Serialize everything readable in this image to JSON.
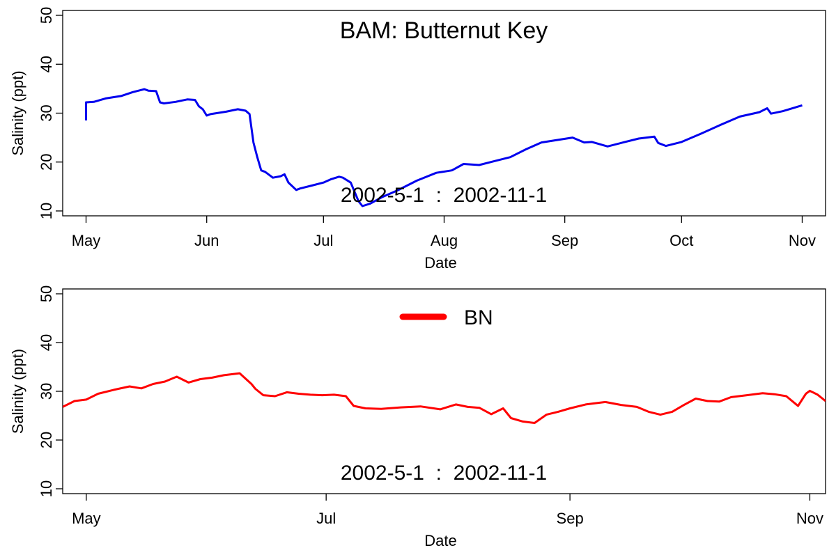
{
  "chart_data": [
    {
      "type": "line",
      "title": "BAM: Butternut Key",
      "annotation": "2002-5-1  :  2002-11-1",
      "xlabel": "Date",
      "ylabel": "Salinity (ppt)",
      "xlim": [
        "2002-04-25",
        "2002-11-07"
      ],
      "ylim": [
        9,
        51
      ],
      "yticks": [
        10,
        20,
        30,
        40,
        50
      ],
      "xticks": [
        {
          "date": "2002-05-01",
          "label": "May"
        },
        {
          "date": "2002-06-01",
          "label": "Jun"
        },
        {
          "date": "2002-07-01",
          "label": "Jul"
        },
        {
          "date": "2002-08-01",
          "label": "Aug"
        },
        {
          "date": "2002-09-01",
          "label": "Sep"
        },
        {
          "date": "2002-10-01",
          "label": "Oct"
        },
        {
          "date": "2002-11-01",
          "label": "Nov"
        }
      ],
      "series": [
        {
          "color": "#0000ee",
          "x": [
            "2002-05-01",
            "2002-05-01",
            "2002-05-01",
            "2002-05-03",
            "2002-05-06",
            "2002-05-10",
            "2002-05-13",
            "2002-05-16",
            "2002-05-17",
            "2002-05-19",
            "2002-05-20",
            "2002-05-21",
            "2002-05-24",
            "2002-05-27",
            "2002-05-29",
            "2002-05-30",
            "2002-05-31",
            "2002-06-01",
            "2002-06-02",
            "2002-06-06",
            "2002-06-09",
            "2002-06-11",
            "2002-06-12",
            "2002-06-13",
            "2002-06-14",
            "2002-06-15",
            "2002-06-16",
            "2002-06-18",
            "2002-06-20",
            "2002-06-21",
            "2002-06-22",
            "2002-06-24",
            "2002-06-25",
            "2002-06-28",
            "2002-07-01",
            "2002-07-03",
            "2002-07-05",
            "2002-07-06",
            "2002-07-08",
            "2002-07-10",
            "2002-07-11",
            "2002-07-13",
            "2002-07-16",
            "2002-07-20",
            "2002-07-25",
            "2002-07-30",
            "2002-08-03",
            "2002-08-06",
            "2002-08-10",
            "2002-08-14",
            "2002-08-18",
            "2002-08-22",
            "2002-08-26",
            "2002-08-30",
            "2002-09-03",
            "2002-09-06",
            "2002-09-08",
            "2002-09-12",
            "2002-09-16",
            "2002-09-20",
            "2002-09-24",
            "2002-09-25",
            "2002-09-27",
            "2002-10-01",
            "2002-10-06",
            "2002-10-11",
            "2002-10-16",
            "2002-10-21",
            "2002-10-23",
            "2002-10-24",
            "2002-10-27",
            "2002-11-01"
          ],
          "y": [
            28.5,
            32.0,
            32.2,
            32.3,
            33.0,
            33.5,
            34.3,
            34.9,
            34.6,
            34.5,
            32.2,
            32.0,
            32.3,
            32.8,
            32.7,
            31.4,
            30.8,
            29.5,
            29.8,
            30.3,
            30.8,
            30.5,
            29.8,
            24.0,
            21.0,
            18.3,
            18.0,
            16.8,
            17.1,
            17.5,
            15.8,
            14.3,
            14.6,
            15.2,
            15.8,
            16.5,
            17.0,
            16.8,
            15.8,
            12.0,
            11.0,
            11.5,
            12.8,
            14.2,
            16.2,
            17.8,
            18.3,
            19.6,
            19.4,
            20.2,
            21.0,
            22.6,
            24.0,
            24.5,
            25.0,
            24.0,
            24.1,
            23.2,
            24.0,
            24.8,
            25.2,
            23.9,
            23.3,
            24.1,
            25.8,
            27.6,
            29.3,
            30.2,
            31.0,
            29.9,
            30.4,
            31.6
          ]
        }
      ]
    },
    {
      "type": "line",
      "annotation": "2002-5-1  :  2002-11-1",
      "xlabel": "Date",
      "ylabel": "Salinity (ppt)",
      "xlim": [
        "2002-04-25",
        "2002-11-05"
      ],
      "ylim": [
        9,
        51
      ],
      "yticks": [
        10,
        20,
        30,
        40,
        50
      ],
      "xticks": [
        {
          "date": "2002-05-01",
          "label": "May"
        },
        {
          "date": "2002-07-01",
          "label": "Jul"
        },
        {
          "date": "2002-09-01",
          "label": "Sep"
        },
        {
          "date": "2002-11-01",
          "label": "Nov"
        }
      ],
      "legend": {
        "position": "top-center",
        "entries": [
          {
            "label": "BN",
            "color": "#ff0000"
          }
        ]
      },
      "series": [
        {
          "name": "BN",
          "color": "#ff0000",
          "x": [
            "2002-04-25",
            "2002-04-28",
            "2002-05-01",
            "2002-05-04",
            "2002-05-08",
            "2002-05-12",
            "2002-05-15",
            "2002-05-18",
            "2002-05-21",
            "2002-05-24",
            "2002-05-27",
            "2002-05-30",
            "2002-06-02",
            "2002-06-05",
            "2002-06-09",
            "2002-06-12",
            "2002-06-13",
            "2002-06-15",
            "2002-06-18",
            "2002-06-21",
            "2002-06-24",
            "2002-06-27",
            "2002-06-30",
            "2002-07-03",
            "2002-07-06",
            "2002-07-08",
            "2002-07-11",
            "2002-07-15",
            "2002-07-20",
            "2002-07-25",
            "2002-07-30",
            "2002-08-03",
            "2002-08-06",
            "2002-08-09",
            "2002-08-12",
            "2002-08-15",
            "2002-08-17",
            "2002-08-20",
            "2002-08-23",
            "2002-08-26",
            "2002-08-29",
            "2002-09-01",
            "2002-09-05",
            "2002-09-10",
            "2002-09-14",
            "2002-09-18",
            "2002-09-21",
            "2002-09-24",
            "2002-09-27",
            "2002-09-30",
            "2002-10-03",
            "2002-10-06",
            "2002-10-09",
            "2002-10-12",
            "2002-10-16",
            "2002-10-20",
            "2002-10-23",
            "2002-10-26",
            "2002-10-29",
            "2002-10-31",
            "2002-11-01",
            "2002-11-03",
            "2002-11-05"
          ],
          "y": [
            26.8,
            28.0,
            28.3,
            29.5,
            30.3,
            31.0,
            30.6,
            31.5,
            32.0,
            33.0,
            31.8,
            32.5,
            32.8,
            33.3,
            33.7,
            31.5,
            30.5,
            29.2,
            29.0,
            29.8,
            29.5,
            29.3,
            29.2,
            29.3,
            29.0,
            27.0,
            26.5,
            26.4,
            26.7,
            26.9,
            26.3,
            27.3,
            26.8,
            26.6,
            25.3,
            26.5,
            24.5,
            23.8,
            23.5,
            25.2,
            25.8,
            26.5,
            27.3,
            27.8,
            27.2,
            26.8,
            25.8,
            25.2,
            25.8,
            27.2,
            28.5,
            28.0,
            27.9,
            28.8,
            29.2,
            29.6,
            29.4,
            29.0,
            27.0,
            29.5,
            30.1,
            29.3,
            28.0
          ]
        }
      ]
    }
  ]
}
